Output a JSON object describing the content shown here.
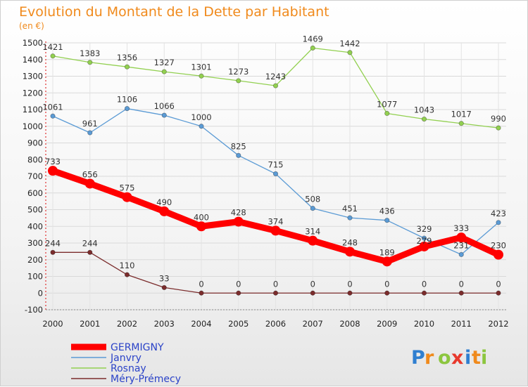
{
  "chart_data": {
    "type": "line",
    "title": "Evolution du Montant de la Dette par Habitant",
    "subtitle": "(en €)",
    "xlabel": "",
    "ylabel": "",
    "x": [
      "2000",
      "2001",
      "2002",
      "2003",
      "2004",
      "2005",
      "2006",
      "2007",
      "2008",
      "2009",
      "2010",
      "2011",
      "2012"
    ],
    "ylim": [
      -100,
      1500
    ],
    "yticks": [
      -100,
      0,
      100,
      200,
      300,
      400,
      500,
      600,
      700,
      800,
      900,
      1000,
      1100,
      1200,
      1300,
      1400,
      1500
    ],
    "grid": true,
    "legend_position": "bottom-left",
    "series": [
      {
        "name": "GERMIGNY",
        "color": "#ff0000",
        "values": [
          733,
          656,
          575,
          490,
          400,
          428,
          374,
          314,
          248,
          189,
          279,
          333,
          230
        ],
        "labels": [
          "733",
          "656",
          "575",
          "490",
          "400",
          "428",
          "374",
          "314",
          "248",
          "189",
          "",
          "333",
          "230"
        ]
      },
      {
        "name": "Janvry",
        "color": "#5b9bd5",
        "values": [
          1061,
          961,
          1106,
          1066,
          1000,
          825,
          715,
          508,
          451,
          436,
          329,
          231,
          423
        ],
        "labels": [
          "1061",
          "961",
          "1106",
          "1066",
          "1000",
          "825",
          "715",
          "508",
          "451",
          "436",
          "329",
          "231",
          "423"
        ]
      },
      {
        "name": "Rosnay",
        "color": "#92d050",
        "values": [
          1421,
          1383,
          1356,
          1327,
          1301,
          1273,
          1243,
          1469,
          1442,
          1077,
          1043,
          1017,
          990
        ],
        "labels": [
          "1421",
          "1383",
          "1356",
          "1327",
          "1301",
          "1273",
          "1243",
          "1469",
          "1442",
          "1077",
          "1043",
          "1017",
          "990"
        ]
      },
      {
        "name": "Méry-Prémecy",
        "color": "#7b2c2c",
        "values": [
          244,
          244,
          110,
          33,
          0,
          0,
          0,
          0,
          0,
          0,
          0,
          0,
          0
        ],
        "labels": [
          "244",
          "244",
          "110",
          "33",
          "0",
          "0",
          "0",
          "0",
          "0",
          "0",
          "0",
          "0",
          "0"
        ]
      }
    ],
    "extra_labels": [
      "279"
    ]
  },
  "logo": {
    "text": "Proxiti",
    "letters": [
      {
        "ch": "P",
        "color": "#2f7fd0"
      },
      {
        "ch": "r",
        "color": "#f08a1c"
      },
      {
        "ch": "o",
        "color": "#8cc63f"
      },
      {
        "ch": "x",
        "color": "#e8392d"
      },
      {
        "ch": "i",
        "color": "#2f7fd0"
      },
      {
        "ch": "t",
        "color": "#f08a1c"
      },
      {
        "ch": "i",
        "color": "#8cc63f"
      }
    ]
  }
}
